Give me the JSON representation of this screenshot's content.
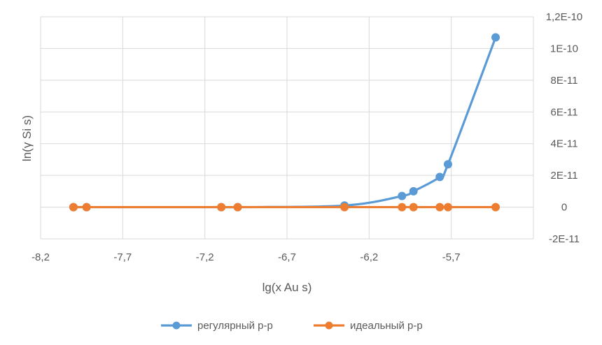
{
  "chart_data": {
    "type": "scatter",
    "xlabel": "lg(x Au s)",
    "ylabel": "ln(γ Si s)",
    "xlim": [
      -8.2,
      -5.2
    ],
    "ylim": [
      -2e-11,
      1.2e-10
    ],
    "x_ticks": [
      -8.2,
      -7.7,
      -7.2,
      -6.7,
      -6.2,
      -5.7
    ],
    "x_tick_labels": [
      "-8,2",
      "-7,7",
      "-7,2",
      "-6,7",
      "-6,2",
      "-5,7"
    ],
    "y_ticks": [
      1.2e-10,
      1e-10,
      8e-11,
      6e-11,
      4e-11,
      2e-11,
      0,
      -2e-11
    ],
    "y_tick_labels": [
      "1,2E-10",
      "1E-10",
      "8E-11",
      "6E-11",
      "4E-11",
      "2E-11",
      "0",
      "-2E-11"
    ],
    "y_axis_position": "right",
    "grid": true,
    "legend_position": "bottom",
    "series": [
      {
        "name": "регулярный р-р",
        "color": "#5B9BD5",
        "x": [
          -8.0,
          -7.92,
          -7.1,
          -7.0,
          -6.35,
          -6.0,
          -5.93,
          -5.77,
          -5.72,
          -5.43
        ],
        "y": [
          0,
          0,
          0,
          0,
          1e-12,
          7e-12,
          1e-11,
          1.9e-11,
          2.7e-11,
          1.07e-10
        ]
      },
      {
        "name": "идеальный р-р",
        "color": "#ED7D31",
        "x": [
          -8.0,
          -7.92,
          -7.1,
          -7.0,
          -6.35,
          -6.0,
          -5.93,
          -5.77,
          -5.72,
          -5.43
        ],
        "y": [
          0,
          0,
          0,
          0,
          0,
          0,
          0,
          0,
          0,
          0
        ]
      }
    ]
  }
}
